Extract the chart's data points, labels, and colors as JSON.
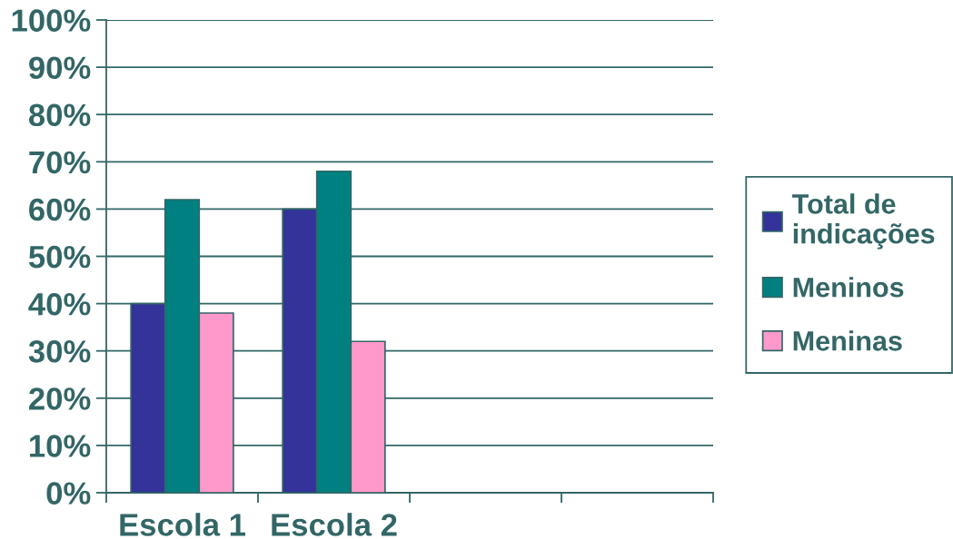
{
  "chart_data": {
    "type": "bar",
    "categories": [
      "Escola 1",
      "Escola 2",
      null,
      null
    ],
    "series": [
      {
        "name": "Total de indicações",
        "color": "#333399",
        "values": [
          40,
          60,
          null,
          null
        ]
      },
      {
        "name": "Meninos",
        "color": "#008080",
        "values": [
          62,
          68,
          null,
          null
        ]
      },
      {
        "name": "Meninas",
        "color": "#ff99cc",
        "values": [
          38,
          32,
          null,
          null
        ]
      }
    ],
    "ylim": [
      0,
      100
    ],
    "yticks": [
      {
        "value": 0,
        "label": "0%"
      },
      {
        "value": 10,
        "label": "10%"
      },
      {
        "value": 20,
        "label": "20%"
      },
      {
        "value": 30,
        "label": "30%"
      },
      {
        "value": 40,
        "label": "40%"
      },
      {
        "value": 50,
        "label": "50%"
      },
      {
        "value": 60,
        "label": "60%"
      },
      {
        "value": 70,
        "label": "70%"
      },
      {
        "value": 80,
        "label": "80%"
      },
      {
        "value": 90,
        "label": "90%"
      },
      {
        "value": 100,
        "label": "100%"
      }
    ],
    "grid": "y",
    "legend": "right"
  }
}
